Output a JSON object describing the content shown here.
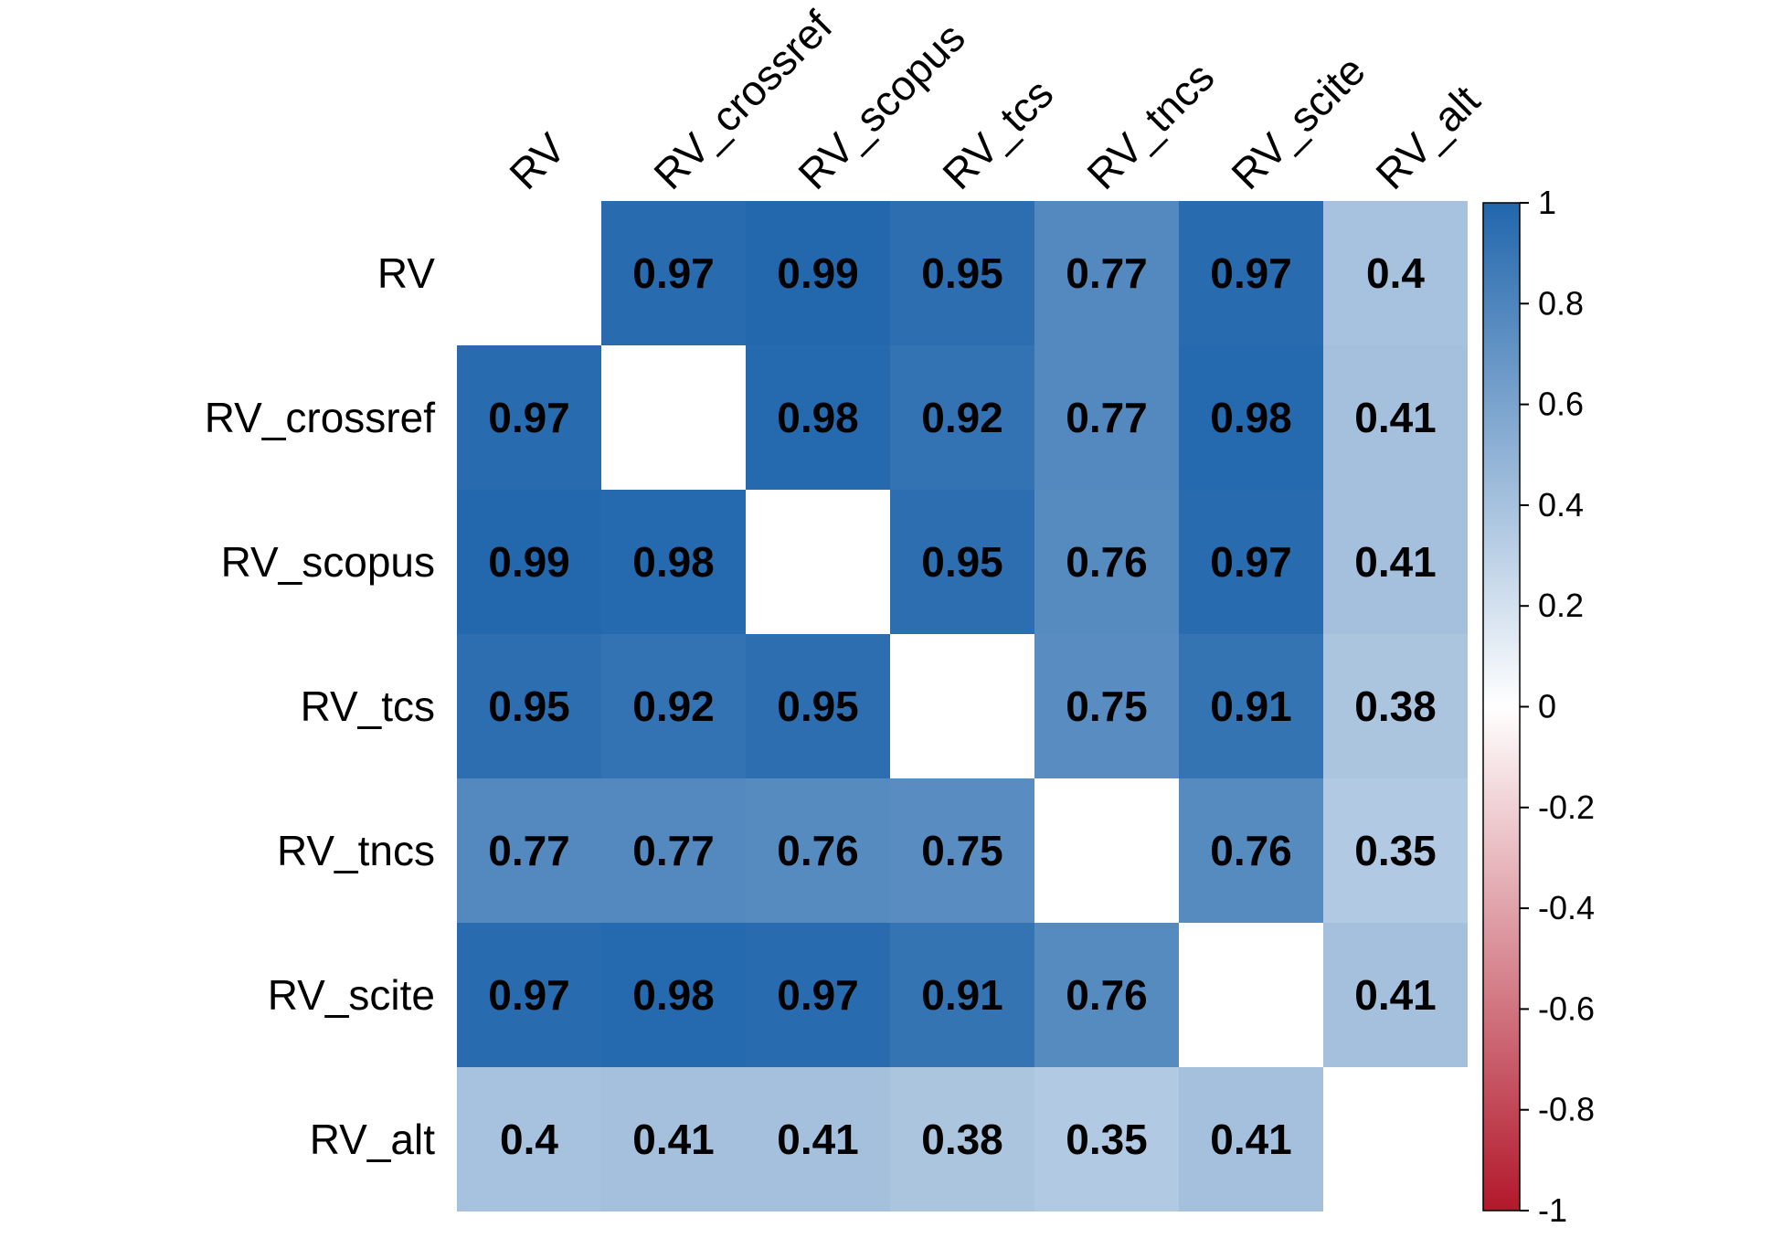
{
  "chart_data": {
    "type": "heatmap",
    "title": "",
    "xlabel": "",
    "ylabel": "",
    "variables": [
      "RV",
      "RV_crossref",
      "RV_scopus",
      "RV_tcs",
      "RV_tncs",
      "RV_scite",
      "RV_alt"
    ],
    "matrix": [
      [
        null,
        0.97,
        0.99,
        0.95,
        0.77,
        0.97,
        0.4
      ],
      [
        0.97,
        null,
        0.98,
        0.92,
        0.77,
        0.98,
        0.41
      ],
      [
        0.99,
        0.98,
        null,
        0.95,
        0.76,
        0.97,
        0.41
      ],
      [
        0.95,
        0.92,
        0.95,
        null,
        0.75,
        0.91,
        0.38
      ],
      [
        0.77,
        0.77,
        0.76,
        0.75,
        null,
        0.76,
        0.35
      ],
      [
        0.97,
        0.98,
        0.97,
        0.91,
        0.76,
        null,
        0.41
      ],
      [
        0.4,
        0.41,
        0.41,
        0.38,
        0.35,
        0.41,
        null
      ]
    ],
    "diagonal": "blank",
    "color_scale": {
      "range": [
        -1,
        1
      ],
      "ticks": [
        "1",
        "0.8",
        "0.6",
        "0.4",
        "0.2",
        "0",
        "-0.2",
        "-0.4",
        "-0.6",
        "-0.8",
        "-1"
      ],
      "low_color": "#B2182B",
      "mid_color": "#FFFFFF",
      "high_color": "#2166AC"
    },
    "legend": "right"
  }
}
